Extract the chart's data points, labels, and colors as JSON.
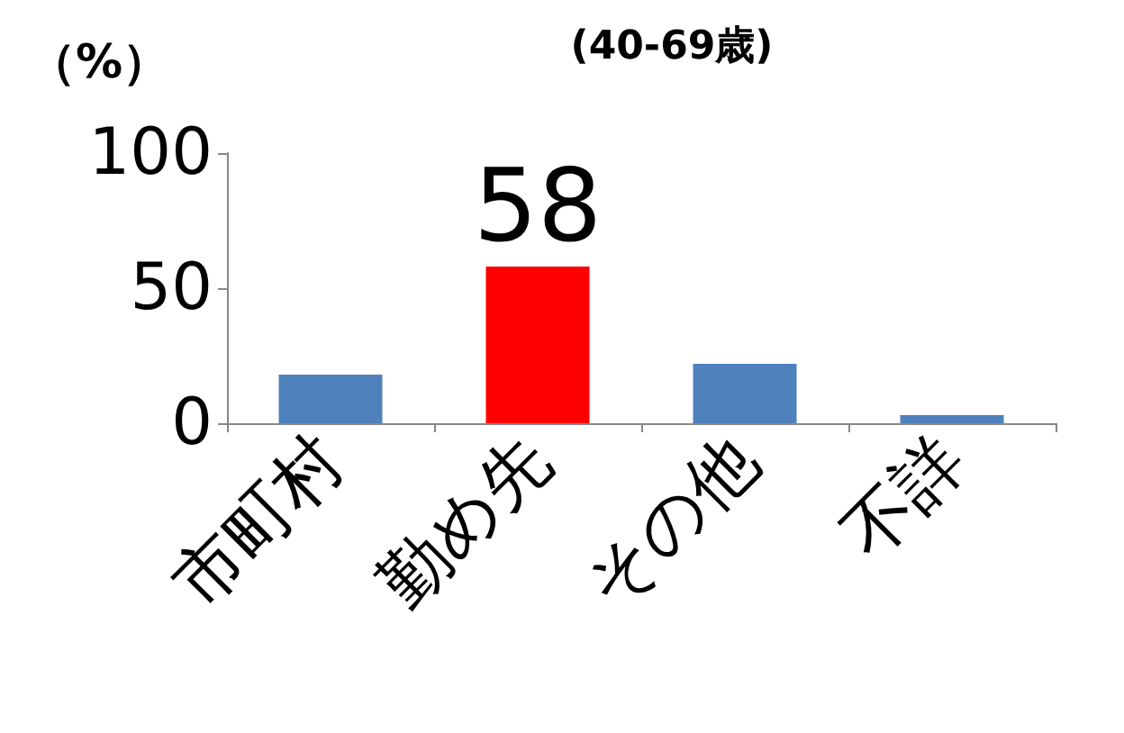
{
  "chart_data": {
    "type": "bar",
    "title": "(40-69歳)",
    "ylabel": "（%）",
    "categories": [
      "市町村",
      "勤め先",
      "その他",
      "不詳"
    ],
    "values": [
      18,
      58,
      22,
      3
    ],
    "colors": [
      "#4f81bd",
      "#ff0000",
      "#4f81bd",
      "#4f81bd"
    ],
    "value_labels": [
      null,
      "58",
      null,
      null
    ],
    "ylim": [
      0,
      100
    ],
    "yticks": [
      0,
      50,
      100
    ],
    "grid": false
  }
}
